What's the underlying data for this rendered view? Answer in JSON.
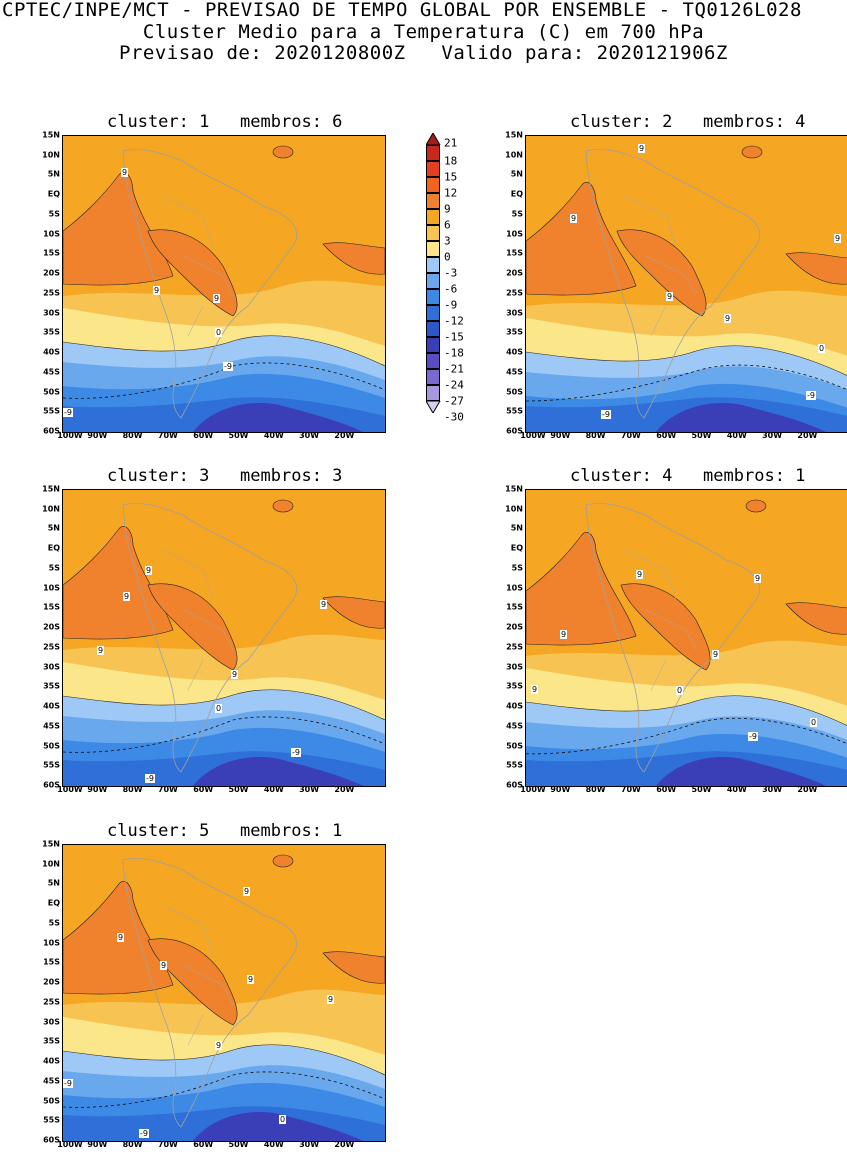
{
  "header": {
    "line1": "CPTEC/INPE/MCT - PREVISAO DE TEMPO GLOBAL POR ENSEMBLE - TQ0126L028",
    "line2": "Cluster Medio para a Temperatura (C) em 700 hPa",
    "line3": "Previsao de: 2020120800Z   Valido para: 2020121906Z"
  },
  "axes": {
    "lat_labels": [
      "15N",
      "10N",
      "5N",
      "EQ",
      "5S",
      "10S",
      "15S",
      "20S",
      "25S",
      "30S",
      "35S",
      "40S",
      "45S",
      "50S",
      "55S",
      "60S"
    ],
    "lon_labels": [
      "100W",
      "90W",
      "80W",
      "70W",
      "60W",
      "50W",
      "40W",
      "30W",
      "20W"
    ]
  },
  "colorbar": {
    "labels": [
      "21",
      "18",
      "15",
      "12",
      "9",
      "6",
      "3",
      "0",
      "-3",
      "-6",
      "-9",
      "-12",
      "-15",
      "-18",
      "-21",
      "-24",
      "-27",
      "-30"
    ],
    "colors": [
      "#a51e1e",
      "#c8281e",
      "#e2401e",
      "#f0641e",
      "#f0822d",
      "#f5a623",
      "#f7c453",
      "#fbe68a",
      "#9ec8f5",
      "#6aa8ee",
      "#3c8ae6",
      "#2f6fd8",
      "#2a58c8",
      "#3a3fb8",
      "#5a4dc4",
      "#7a6ad0",
      "#a898e0",
      "#d6cff2"
    ]
  },
  "panels": [
    {
      "title": "cluster: 1   membros: 6",
      "labels": [
        "9",
        "9",
        "9",
        "0",
        "-9",
        "-9"
      ]
    },
    {
      "title": "cluster: 2   membros: 4",
      "labels": [
        "9",
        "9",
        "9",
        "9",
        "9",
        "0",
        "-9",
        "-9"
      ]
    },
    {
      "title": "cluster: 3   membros: 3",
      "labels": [
        "9",
        "9",
        "9",
        "9",
        "9",
        "0",
        "-9",
        "-9"
      ]
    },
    {
      "title": "cluster: 4   membros: 1",
      "labels": [
        "9",
        "9",
        "9",
        "9",
        "9",
        "0",
        "0",
        "-9"
      ]
    },
    {
      "title": "cluster: 5   membros: 1",
      "labels": [
        "9",
        "9",
        "9",
        "9",
        "9",
        "0",
        "-9",
        "-9",
        "9"
      ]
    }
  ]
}
